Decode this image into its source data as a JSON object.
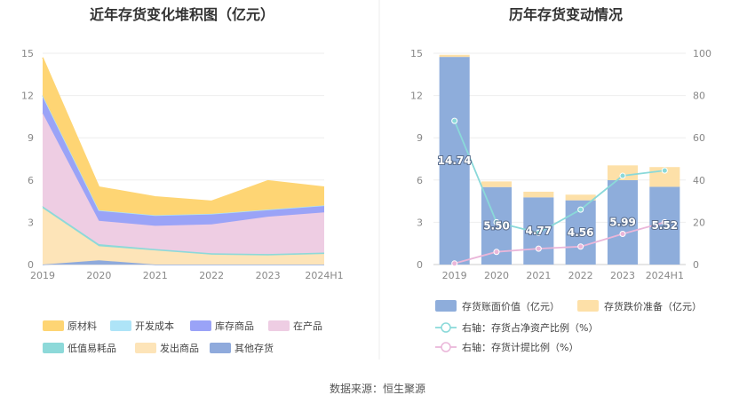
{
  "footer": {
    "source": "数据来源：恒生聚源"
  },
  "chart_data": [
    {
      "type": "area",
      "title": "近年存货变化堆积图（亿元）",
      "x": [
        "2019",
        "2020",
        "2021",
        "2022",
        "2023",
        "2024H1"
      ],
      "ylim": [
        0,
        15
      ],
      "yticks": [
        "0",
        "3",
        "6",
        "9",
        "12",
        "15"
      ],
      "grid": true,
      "legend_position": "bottom",
      "series": [
        {
          "name": "其他存货",
          "color": "#8faadc",
          "values": [
            0.0,
            0.3,
            0.0,
            0.0,
            0.0,
            0.0
          ]
        },
        {
          "name": "发出商品",
          "color": "#fde4b8",
          "values": [
            4.0,
            1.0,
            1.0,
            0.7,
            0.65,
            0.75
          ]
        },
        {
          "name": "低值易耗品",
          "color": "#8dd9d9",
          "values": [
            0.15,
            0.15,
            0.1,
            0.1,
            0.1,
            0.1
          ]
        },
        {
          "name": "在产品",
          "color": "#eecde3",
          "values": [
            6.6,
            1.65,
            1.65,
            2.05,
            2.65,
            2.85
          ]
        },
        {
          "name": "库存商品",
          "color": "#9aa3f7",
          "values": [
            1.25,
            0.75,
            0.75,
            0.75,
            0.5,
            0.5
          ]
        },
        {
          "name": "开发成本",
          "color": "#aee4f7",
          "values": [
            0.0,
            0.0,
            0.0,
            0.0,
            0.0,
            0.0
          ]
        },
        {
          "name": "原材料",
          "color": "#fed574",
          "values": [
            2.7,
            1.65,
            1.3,
            0.9,
            2.05,
            1.3
          ]
        }
      ],
      "legend_order": [
        "原材料",
        "开发成本",
        "库存商品",
        "在产品",
        "低值易耗品",
        "发出商品",
        "其他存货"
      ]
    },
    {
      "type": "bar",
      "title": "历年存货变动情况",
      "categories": [
        "2019",
        "2020",
        "2021",
        "2022",
        "2023",
        "2024H1"
      ],
      "ylim": [
        0,
        15
      ],
      "yticks": [
        "0",
        "3",
        "6",
        "9",
        "12",
        "15"
      ],
      "y2lim": [
        0,
        100
      ],
      "y2ticks": [
        "0",
        "20",
        "40",
        "60",
        "80",
        "100"
      ],
      "grid": true,
      "legend_position": "bottom",
      "bar_series": [
        {
          "name": "存货账面价值（亿元）",
          "color": "#8eaddb",
          "values": [
            14.74,
            5.5,
            4.77,
            4.56,
            5.99,
            5.52
          ],
          "labels": [
            "14.74",
            "5.50",
            "4.77",
            "4.56",
            "5.99",
            "5.52"
          ]
        },
        {
          "name": "存货跌价准备（亿元）",
          "color": "#fde0a8",
          "values": [
            0.15,
            0.4,
            0.4,
            0.4,
            1.05,
            1.4
          ]
        }
      ],
      "line_series": [
        {
          "name": "右轴：存货占净资产比例（%）",
          "color": "#8ad9d9",
          "values": [
            68,
            20,
            15,
            26,
            42,
            44.5
          ]
        },
        {
          "name": "右轴：存货计提比例（%）",
          "color": "#eab6d9",
          "values": [
            0.5,
            6,
            7.5,
            8.5,
            14.5,
            20
          ]
        }
      ]
    }
  ]
}
